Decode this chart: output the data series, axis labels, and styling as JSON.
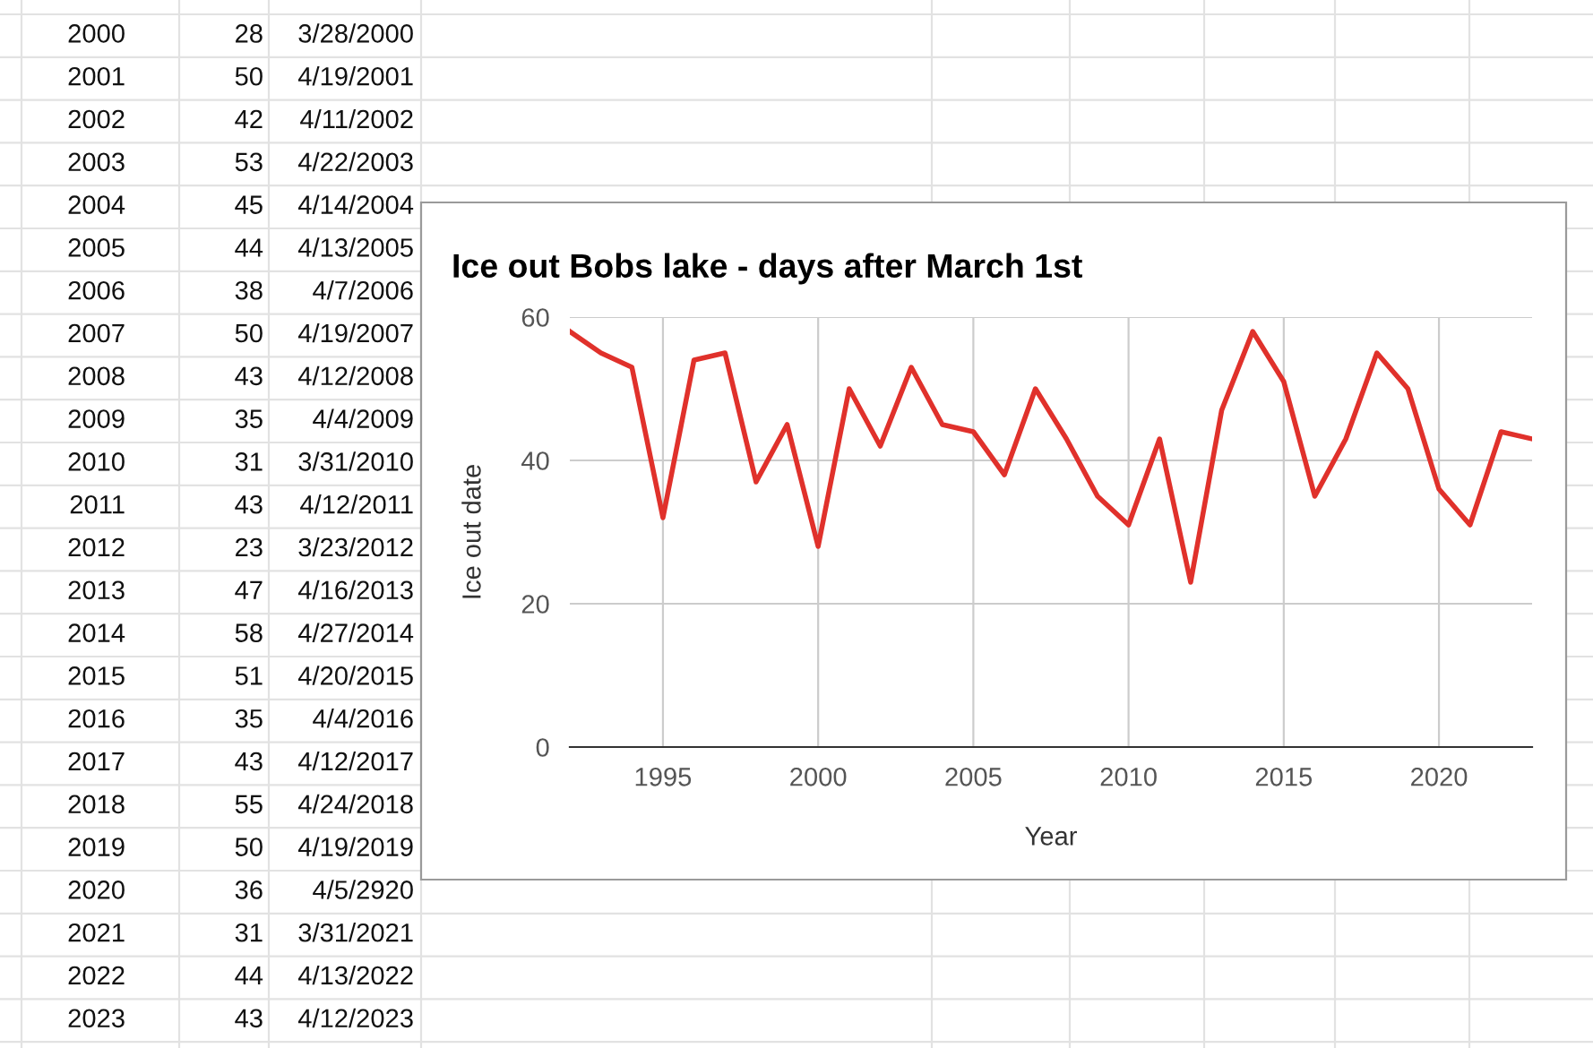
{
  "chart_data": [
    {
      "type": "other",
      "annotations": [
        "2000               28",
        "3/28/2000",
        "2001               50",
        "4/19/2001",
        "2002               42",
        "4/11/2002",
        "2003               53",
        "4/22/2003",
        "2004               45",
        "4/14/2004",
        "2005               44",
        "4/13/2005",
        "2006               38",
        "4/7/2006",
        "2007               50",
        "4/19/2007",
        "2008               43",
        "4/12/2008",
        "2009               35",
        "4/4/2009",
        "2010               31",
        "3/31/2010",
        "2011               43",
        "4/12/2011",
        "2012               23",
        "3/23/2012",
        "2013               47",
        "4/16/2013",
        "2014               58",
        "4/27/2014",
        "2015               51",
        "4/20/2015",
        "2016               35",
        "4/4/2016",
        "2017               43",
        "4/12/2017",
        "2018               55",
        "4/24/2018",
        "2019               50",
        "4/19/2019",
        "2020               36",
        "4/5/2920",
        "2021               31",
        "3/31/2021",
        "2022               44",
        "4/13/2022",
        "2023               43",
        "4/12/2023"
      ]
    },
    {
      "type": "line",
      "title": "Ice out Bobs lake - days after March 1st",
      "xlabel": "Year",
      "ylabel": "Ice out date",
      "x": [
        1992,
        1993,
        1994,
        1995,
        1996,
        1997,
        1998,
        1999,
        2000,
        2001,
        2002,
        2003,
        2004,
        2005,
        2006,
        2007,
        2008,
        2009,
        2010,
        2011,
        2012,
        2013,
        2014,
        2015,
        2016,
        2017,
        2018,
        2019,
        2020,
        2021,
        2022,
        2023
      ],
      "series": [
        {
          "color": "#e0312b",
          "values": [
            58,
            55,
            53,
            32,
            54,
            55,
            37,
            45,
            28,
            50,
            42,
            53,
            45,
            44,
            38,
            50,
            43,
            35,
            31,
            43,
            23,
            47,
            58,
            51,
            35,
            43,
            55,
            50,
            36,
            31,
            44,
            43
          ]
        }
      ],
      "xlim": [
        1992,
        2023
      ],
      "xticks": [
        1995,
        2000,
        2005,
        2010,
        2015,
        2020
      ],
      "ylim": [
        0,
        60
      ],
      "yticks": [
        0,
        20,
        40,
        60
      ],
      "grid": true,
      "marker": "none",
      "line_style": "solid"
    }
  ]
}
